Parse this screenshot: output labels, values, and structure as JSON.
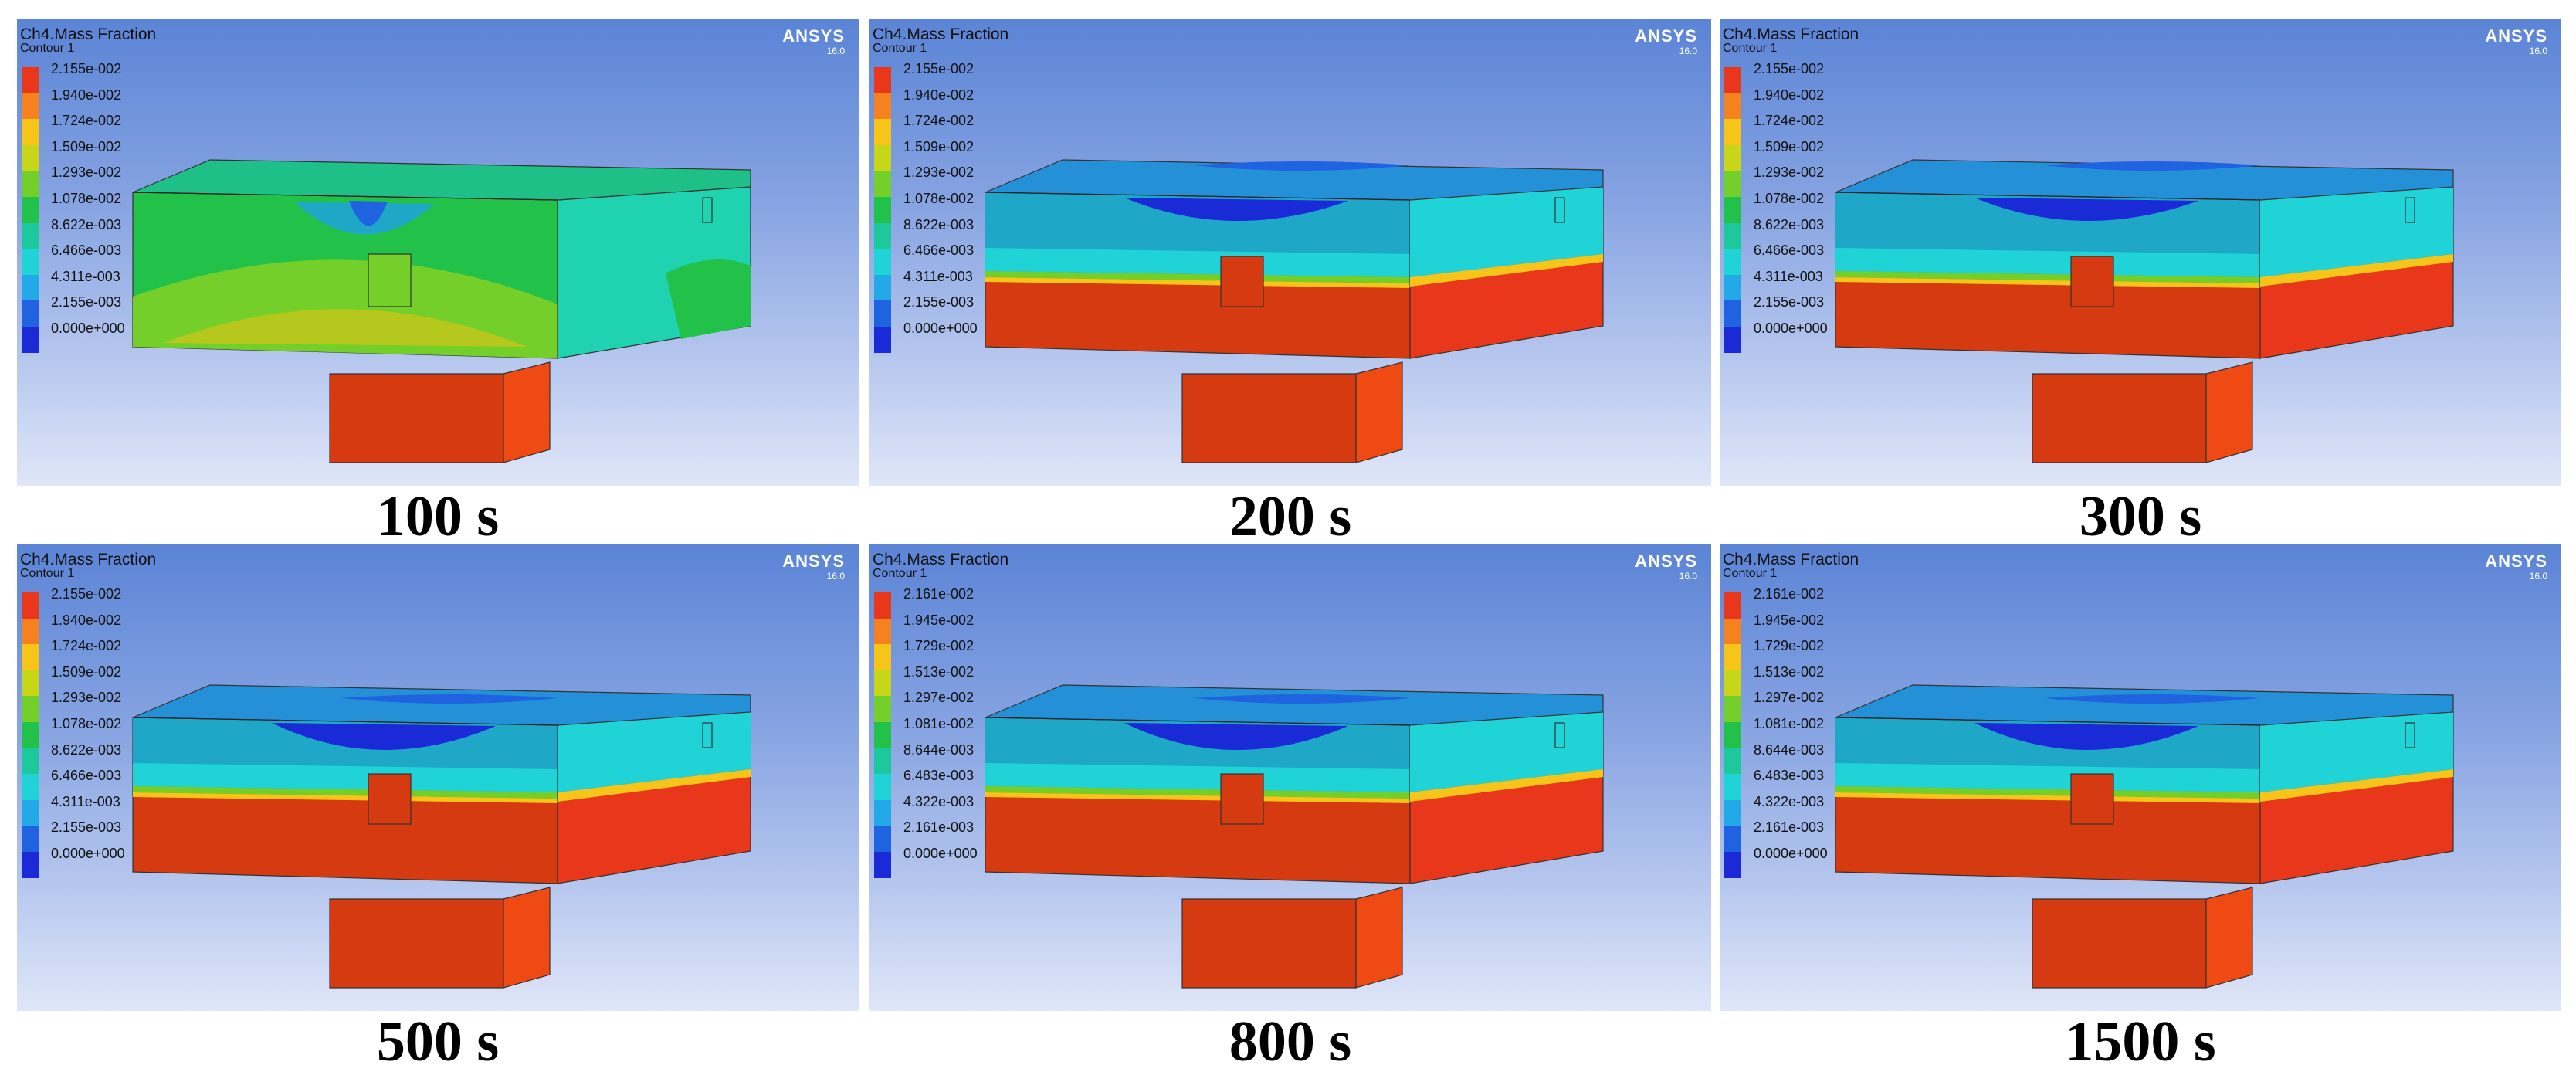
{
  "figure": {
    "panels": [
      {
        "caption": "100 s",
        "variable": "Ch4.Mass Fraction",
        "contour": "Contour 1",
        "brand": "ANSYS",
        "version": "16.0",
        "legend_ticks": [
          "2.155e-002",
          "1.940e-002",
          "1.724e-002",
          "1.509e-002",
          "1.293e-002",
          "1.078e-002",
          "8.622e-003",
          "6.466e-003",
          "4.311e-003",
          "2.155e-003",
          "0.000e+000"
        ],
        "state": "early"
      },
      {
        "caption": "200 s",
        "variable": "Ch4.Mass Fraction",
        "contour": "Contour 1",
        "brand": "ANSYS",
        "version": "16.0",
        "legend_ticks": [
          "2.155e-002",
          "1.940e-002",
          "1.724e-002",
          "1.509e-002",
          "1.293e-002",
          "1.078e-002",
          "8.622e-003",
          "6.466e-003",
          "4.311e-003",
          "2.155e-003",
          "0.000e+000"
        ],
        "state": "mid"
      },
      {
        "caption": "300 s",
        "variable": "Ch4.Mass Fraction",
        "contour": "Contour 1",
        "brand": "ANSYS",
        "version": "16.0",
        "legend_ticks": [
          "2.155e-002",
          "1.940e-002",
          "1.724e-002",
          "1.509e-002",
          "1.293e-002",
          "1.078e-002",
          "8.622e-003",
          "6.466e-003",
          "4.311e-003",
          "2.155e-003",
          "0.000e+000"
        ],
        "state": "mid"
      },
      {
        "caption": "500 s",
        "variable": "Ch4.Mass Fraction",
        "contour": "Contour 1",
        "brand": "ANSYS",
        "version": "16.0",
        "legend_ticks": [
          "2.155e-002",
          "1.940e-002",
          "1.724e-002",
          "1.509e-002",
          "1.293e-002",
          "1.078e-002",
          "8.622e-003",
          "6.466e-003",
          "4.311e-003",
          "2.155e-003",
          "0.000e+000"
        ],
        "state": "late"
      },
      {
        "caption": "800 s",
        "variable": "Ch4.Mass Fraction",
        "contour": "Contour 1",
        "brand": "ANSYS",
        "version": "16.0",
        "legend_ticks": [
          "2.161e-002",
          "1.945e-002",
          "1.729e-002",
          "1.513e-002",
          "1.297e-002",
          "1.081e-002",
          "8.644e-003",
          "6.483e-003",
          "4.322e-003",
          "2.161e-003",
          "0.000e+000"
        ],
        "state": "late"
      },
      {
        "caption": "1500 s",
        "variable": "Ch4.Mass Fraction",
        "contour": "Contour 1",
        "brand": "ANSYS",
        "version": "16.0",
        "legend_ticks": [
          "2.161e-002",
          "1.945e-002",
          "1.729e-002",
          "1.513e-002",
          "1.297e-002",
          "1.081e-002",
          "8.644e-003",
          "6.483e-003",
          "4.322e-003",
          "2.161e-003",
          "0.000e+000"
        ],
        "state": "late"
      }
    ],
    "legend_colors": [
      "#e8371a",
      "#f5821f",
      "#f7c51a",
      "#c8d61a",
      "#74cf2a",
      "#22c24a",
      "#1dc99c",
      "#1fd3d6",
      "#23a8e8",
      "#1f63e0",
      "#1a2ad6"
    ]
  }
}
